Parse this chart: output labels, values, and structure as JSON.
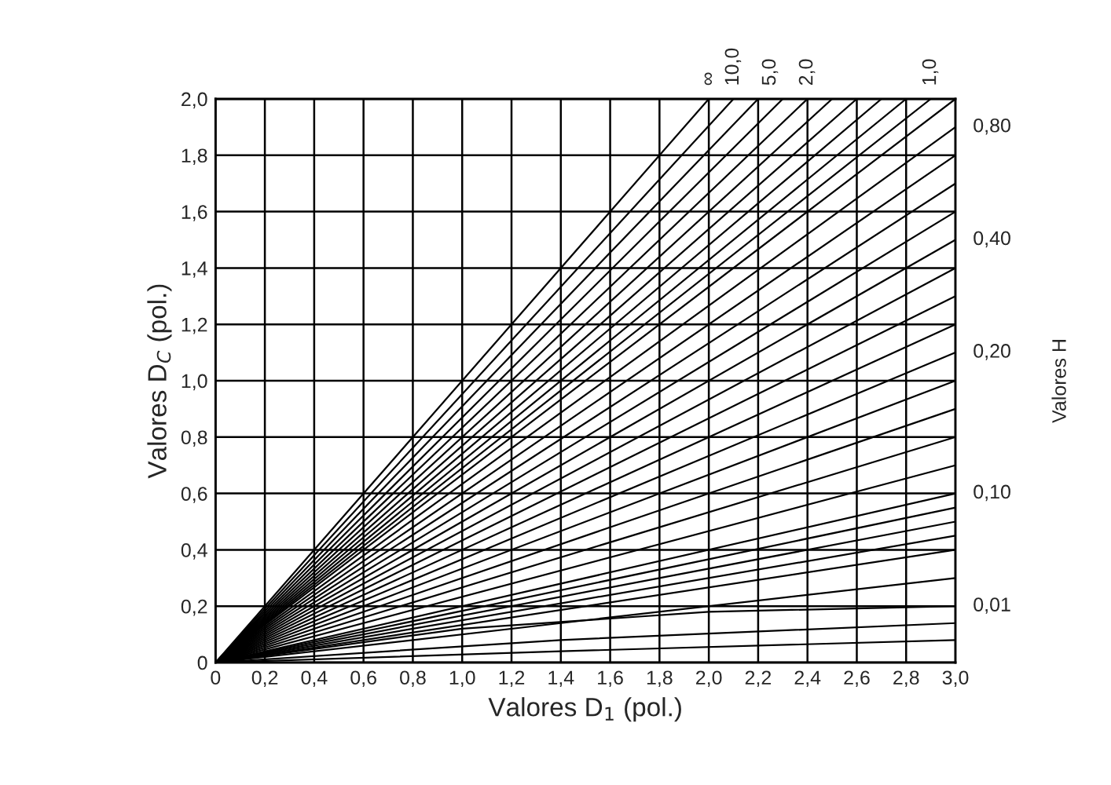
{
  "chart_data": {
    "type": "line",
    "xlabel": "Valores D$_{1}$ (pol.)",
    "ylabel": "Valores D$_{C}$ (pol.)",
    "y2label": "Valores H",
    "xlim": [
      0,
      3.0
    ],
    "ylim": [
      0,
      2.0
    ],
    "grid": true,
    "marker": "none",
    "line_style": "solid",
    "legend": false,
    "xticks": [
      0,
      {
        "value": 0.2,
        "label": "0,2"
      },
      {
        "value": 0.4,
        "label": "0,4"
      },
      {
        "value": 0.6,
        "label": "0,6"
      },
      {
        "value": 0.8,
        "label": "0,8"
      },
      {
        "value": 1.0,
        "label": "1,0"
      },
      {
        "value": 1.2,
        "label": "1,2"
      },
      {
        "value": 1.4,
        "label": "1,4"
      },
      {
        "value": 1.6,
        "label": "1,6"
      },
      {
        "value": 1.8,
        "label": "1,8"
      },
      {
        "value": 2.0,
        "label": "2,0"
      },
      {
        "value": 2.2,
        "label": "2,2"
      },
      {
        "value": 2.4,
        "label": "2,4"
      },
      {
        "value": 2.6,
        "label": "2,6"
      },
      {
        "value": 2.8,
        "label": "2,8"
      },
      {
        "value": 3.0,
        "label": "3,0"
      }
    ],
    "yticks": [
      0,
      {
        "value": 0.2,
        "label": "0,2"
      },
      {
        "value": 0.4,
        "label": "0,4"
      },
      {
        "value": 0.6,
        "label": "0,6"
      },
      {
        "value": 0.8,
        "label": "0,8"
      },
      {
        "value": 1.0,
        "label": "1,0"
      },
      {
        "value": 1.2,
        "label": "1,2"
      },
      {
        "value": 1.4,
        "label": "1,4"
      },
      {
        "value": 1.6,
        "label": "1,6"
      },
      {
        "value": 1.8,
        "label": "1,8"
      },
      {
        "value": 2.0,
        "label": "2,0"
      }
    ],
    "annotations": [
      {
        "text": "∞",
        "x": 2.0,
        "y": 2.0
      },
      {
        "text": "10,0",
        "x": 2.1,
        "y": 2.0
      },
      {
        "text": "5,0",
        "x": 2.25,
        "y": 2.0
      },
      {
        "text": "2,0",
        "x": 2.4,
        "y": 2.0
      },
      {
        "text": "1,0",
        "x": 2.9,
        "y": 2.0
      },
      {
        "text": "0,80",
        "x": 3.0,
        "y": 1.9
      },
      {
        "text": "0,40",
        "x": 3.0,
        "y": 1.5
      },
      {
        "text": "0,20",
        "x": 3.0,
        "y": 1.1
      },
      {
        "text": "0,10",
        "x": 3.0,
        "y": 0.6
      },
      {
        "text": "0,01",
        "x": 3.0,
        "y": 0.2
      }
    ],
    "series": [
      {
        "color": "#000000",
        "x": [
          0,
          2.0
        ],
        "values": [
          0,
          2.0
        ]
      },
      {
        "color": "#000000",
        "x": [
          0,
          2.1
        ],
        "values": [
          0,
          2.0
        ]
      },
      {
        "color": "#000000",
        "x": [
          0,
          2.2
        ],
        "values": [
          0,
          2.0
        ]
      },
      {
        "color": "#000000",
        "x": [
          0,
          2.3
        ],
        "values": [
          0,
          2.0
        ]
      },
      {
        "color": "#000000",
        "x": [
          0,
          2.4
        ],
        "values": [
          0,
          2.0
        ]
      },
      {
        "color": "#000000",
        "x": [
          0,
          2.5
        ],
        "values": [
          0,
          2.0
        ]
      },
      {
        "color": "#000000",
        "x": [
          0,
          2.6
        ],
        "values": [
          0,
          2.0
        ]
      },
      {
        "color": "#000000",
        "x": [
          0,
          2.7
        ],
        "values": [
          0,
          2.0
        ]
      },
      {
        "color": "#000000",
        "x": [
          0,
          2.8
        ],
        "values": [
          0,
          2.0
        ]
      },
      {
        "color": "#000000",
        "x": [
          0,
          2.9
        ],
        "values": [
          0,
          2.0
        ]
      },
      {
        "color": "#000000",
        "x": [
          0,
          3.0
        ],
        "values": [
          0,
          2.0
        ]
      },
      {
        "color": "#000000",
        "x": [
          0,
          3.0
        ],
        "values": [
          0,
          1.9
        ]
      },
      {
        "color": "#000000",
        "x": [
          0,
          3.0
        ],
        "values": [
          0,
          1.8
        ]
      },
      {
        "color": "#000000",
        "x": [
          0,
          3.0
        ],
        "values": [
          0,
          1.7
        ]
      },
      {
        "color": "#000000",
        "x": [
          0,
          3.0
        ],
        "values": [
          0,
          1.6
        ]
      },
      {
        "color": "#000000",
        "x": [
          0,
          3.0
        ],
        "values": [
          0,
          1.5
        ]
      },
      {
        "color": "#000000",
        "x": [
          0,
          3.0
        ],
        "values": [
          0,
          1.4
        ]
      },
      {
        "color": "#000000",
        "x": [
          0,
          3.0
        ],
        "values": [
          0,
          1.3
        ]
      },
      {
        "color": "#000000",
        "x": [
          0,
          3.0
        ],
        "values": [
          0,
          1.2
        ]
      },
      {
        "color": "#000000",
        "x": [
          0,
          3.0
        ],
        "values": [
          0,
          1.1
        ]
      },
      {
        "color": "#000000",
        "x": [
          0,
          3.0
        ],
        "values": [
          0,
          1.0
        ]
      },
      {
        "color": "#000000",
        "x": [
          0,
          3.0
        ],
        "values": [
          0,
          0.9
        ]
      },
      {
        "color": "#000000",
        "x": [
          0,
          3.0
        ],
        "values": [
          0,
          0.8
        ]
      },
      {
        "color": "#000000",
        "x": [
          0,
          3.0
        ],
        "values": [
          0,
          0.7
        ]
      },
      {
        "color": "#000000",
        "x": [
          0,
          3.0
        ],
        "values": [
          0,
          0.6
        ]
      },
      {
        "color": "#000000",
        "x": [
          0,
          3.0
        ],
        "values": [
          0,
          0.55
        ]
      },
      {
        "color": "#000000",
        "x": [
          0,
          3.0
        ],
        "values": [
          0,
          0.5
        ]
      },
      {
        "color": "#000000",
        "x": [
          0,
          3.0
        ],
        "values": [
          0,
          0.45
        ]
      },
      {
        "color": "#000000",
        "x": [
          0,
          3.0
        ],
        "values": [
          0,
          0.4
        ]
      },
      {
        "color": "#000000",
        "x": [
          0,
          3.0
        ],
        "values": [
          0,
          0.3
        ]
      },
      {
        "color": "#000000",
        "x": [
          0,
          1.0,
          2.0,
          3.0
        ],
        "values": [
          0,
          0.12,
          0.18,
          0.2
        ]
      },
      {
        "color": "#000000",
        "x": [
          0,
          1.4,
          3.0
        ],
        "values": [
          0,
          0.08,
          0.14
        ]
      },
      {
        "color": "#000000",
        "x": [
          0,
          1.4,
          3.0
        ],
        "values": [
          0,
          0.04,
          0.08
        ]
      }
    ]
  }
}
